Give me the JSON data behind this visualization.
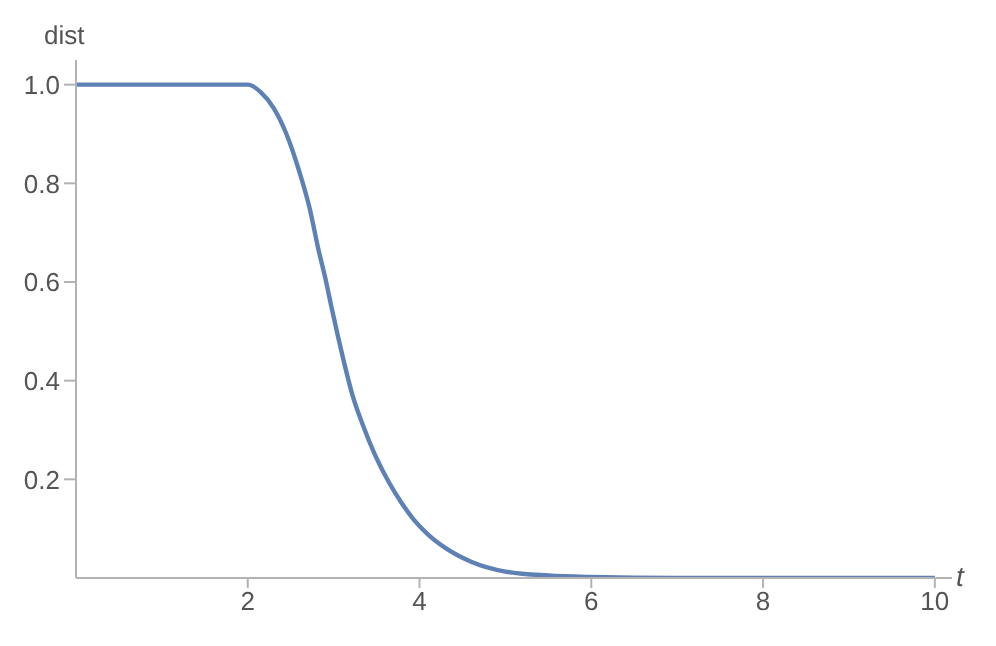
{
  "chart_data": {
    "type": "line",
    "xlabel": "t",
    "ylabel": "dist",
    "x": [
      0,
      1,
      2,
      2.15,
      2.3,
      2.45,
      2.6,
      2.72,
      2.82,
      2.9,
      2.97,
      3.05,
      3.12,
      3.22,
      3.34,
      3.48,
      3.64,
      3.78,
      3.93,
      4.1,
      4.3,
      4.6,
      5,
      5.5,
      6,
      7,
      8,
      9,
      10
    ],
    "series": [
      {
        "color": "#5e81b5",
        "values": [
          1,
          1,
          1,
          0.985,
          0.953,
          0.9,
          0.824,
          0.75,
          0.668,
          0.61,
          0.553,
          0.49,
          0.438,
          0.37,
          0.31,
          0.25,
          0.195,
          0.155,
          0.119,
          0.088,
          0.061,
          0.033,
          0.013,
          0.005,
          0.002,
          0,
          0,
          0,
          0
        ]
      }
    ],
    "xlim": [
      0,
      10.2
    ],
    "ylim": [
      0,
      1.05
    ],
    "xticks": [
      2,
      4,
      6,
      8,
      10
    ],
    "yticks": [
      0.2,
      0.4,
      0.6,
      0.8,
      {
        "value": 1,
        "label": "1.0"
      }
    ],
    "grid": false,
    "legend": false,
    "marker": "none",
    "line_style": "solid"
  }
}
